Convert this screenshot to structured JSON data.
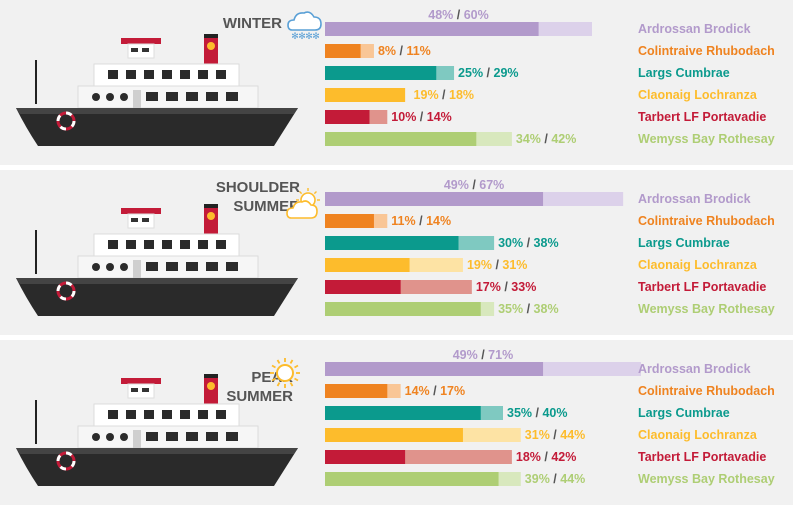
{
  "colors": {
    "Ardrossan Brodick": {
      "dark": "#b29acb",
      "light": "#dcd1ea"
    },
    "Colintraive Rhubodach": {
      "dark": "#ef8320",
      "light": "#f9c696"
    },
    "Largs Cumbrae": {
      "dark": "#0b9a8d",
      "light": "#7fc9c1"
    },
    "Claonaig Lochranza": {
      "dark": "#fdbc2c",
      "light": "#fde3a4"
    },
    "Tarbert LF Portavadie": {
      "dark": "#c31b38",
      "light": "#e0938c"
    },
    "Wemyss Bay Rothesay": {
      "dark": "#aece74",
      "light": "#d8e8bd"
    }
  },
  "chart_data": [
    {
      "type": "bar",
      "season": "WINTER",
      "weather_icon": "snow-cloud-icon",
      "categories": [
        "Ardrossan Brodick",
        "Colintraive Rhubodach",
        "Largs Cumbrae",
        "Claonaig Lochranza",
        "Tarbert LF Portavadie",
        "Wemyss Bay Rothesay"
      ],
      "series": [
        {
          "values": [
            48,
            8,
            25,
            19,
            10,
            34
          ]
        },
        {
          "values": [
            60,
            11,
            29,
            18,
            14,
            42
          ]
        }
      ]
    },
    {
      "type": "bar",
      "season": "SHOULDER\nSUMMER",
      "weather_icon": "sun-cloud-icon",
      "categories": [
        "Ardrossan Brodick",
        "Colintraive Rhubodach",
        "Largs Cumbrae",
        "Claonaig Lochranza",
        "Tarbert LF Portavadie",
        "Wemyss Bay Rothesay"
      ],
      "series": [
        {
          "values": [
            49,
            11,
            30,
            19,
            17,
            35
          ]
        },
        {
          "values": [
            67,
            14,
            38,
            31,
            33,
            38
          ]
        }
      ]
    },
    {
      "type": "bar",
      "season": "PEAK\nSUMMER",
      "weather_icon": "sun-icon",
      "categories": [
        "Ardrossan Brodick",
        "Colintraive Rhubodach",
        "Largs Cumbrae",
        "Claonaig Lochranza",
        "Tarbert LF Portavadie",
        "Wemyss Bay Rothesay"
      ],
      "series": [
        {
          "values": [
            49,
            14,
            35,
            31,
            18,
            39
          ]
        },
        {
          "values": [
            71,
            17,
            40,
            44,
            42,
            44
          ]
        }
      ]
    }
  ]
}
